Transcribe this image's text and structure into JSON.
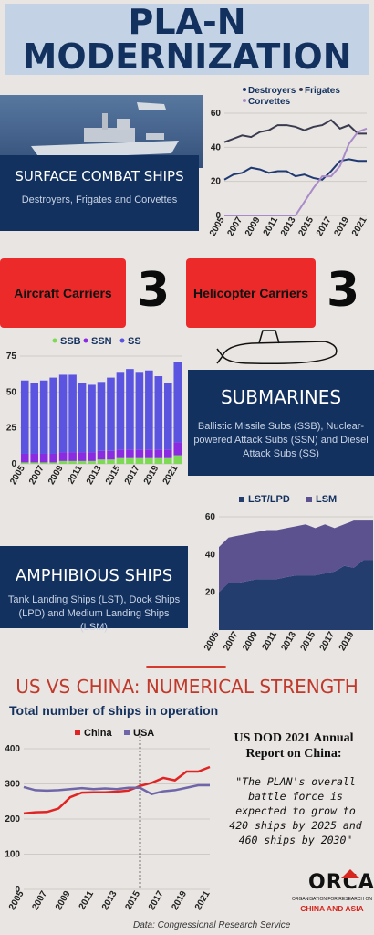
{
  "header": {
    "line1": "PLA-N",
    "line2": "MODERNIZATION"
  },
  "surface": {
    "title": "SURFACE COMBAT SHIPS",
    "subtitle": "Destroyers, Frigates and Corvettes"
  },
  "carriers": {
    "aircraft_label": "Aircraft Carriers",
    "aircraft_count": "3",
    "helicopter_label": "Helicopter Carriers",
    "helicopter_count": "3"
  },
  "submarines": {
    "title": "SUBMARINES",
    "subtitle": "Ballistic Missile Subs (SSB), Nuclear-powered Attack Subs (SSN) and Diesel Attack Subs (SS)"
  },
  "amphibious": {
    "title": "AMPHIBIOUS SHIPS",
    "subtitle": "Tank Landing Ships (LST), Dock Ships (LPD) and Medium Landing Ships (LSM)"
  },
  "comparison": {
    "title": "US VS CHINA: NUMERICAL STRENGTH",
    "subtitle": "Total number of ships in operation",
    "report_title": "US DOD 2021 Annual Report on China:",
    "quote": "\"The PLAN's overall battle force is expected to grow to 420 ships by 2025 and 460 ships by 2030\"",
    "source": "Data: Congressional Research Service",
    "logo_word": "ORCA",
    "logo_line1": "ORGANISATION FOR RESEARCH ON",
    "logo_line2": "CHINA AND ASIA"
  },
  "colors": {
    "navy": "#13315f",
    "red": "#ec2a2a",
    "title_bg": "#c3d2e4",
    "destroyers": "#1f3a73",
    "frigates": "#3b3b4f",
    "corvettes": "#a98bc9",
    "ssb": "#7ed957",
    "ssn": "#8a2be2",
    "ss": "#5a54e0",
    "lst": "#233d6e",
    "lsm": "#5c5290",
    "china": "#e02424",
    "usa": "#6e66a8"
  },
  "chart_data": [
    {
      "id": "surface",
      "type": "line",
      "x": [
        2005,
        2006,
        2007,
        2008,
        2009,
        2010,
        2011,
        2012,
        2013,
        2014,
        2015,
        2016,
        2017,
        2018,
        2019,
        2020,
        2021
      ],
      "xticks": [
        2005,
        2007,
        2009,
        2011,
        2013,
        2015,
        2017,
        2019,
        2021
      ],
      "ylim": [
        0,
        60
      ],
      "yticks": [
        0,
        20,
        40,
        60
      ],
      "series": [
        {
          "name": "Destroyers",
          "values": [
            21,
            24,
            25,
            28,
            27,
            25,
            26,
            26,
            23,
            24,
            22,
            21,
            26,
            32,
            33,
            32,
            32
          ]
        },
        {
          "name": "Frigates",
          "values": [
            43,
            45,
            47,
            46,
            49,
            50,
            53,
            53,
            52,
            50,
            52,
            53,
            56,
            51,
            53,
            48,
            48
          ]
        },
        {
          "name": "Corvettes",
          "values": [
            0,
            0,
            0,
            0,
            0,
            0,
            0,
            0,
            0,
            8,
            16,
            23,
            23,
            29,
            42,
            49,
            51
          ]
        }
      ]
    },
    {
      "id": "submarines",
      "type": "bar",
      "stacked": true,
      "categories": [
        2005,
        2006,
        2007,
        2008,
        2009,
        2010,
        2011,
        2012,
        2013,
        2014,
        2015,
        2016,
        2017,
        2018,
        2019,
        2020,
        2021
      ],
      "xticks": [
        2005,
        2007,
        2009,
        2011,
        2013,
        2015,
        2017,
        2019,
        2021
      ],
      "ylim": [
        0,
        75
      ],
      "yticks": [
        0,
        25,
        50,
        75
      ],
      "series": [
        {
          "name": "SSB",
          "values": [
            1,
            1,
            1,
            1,
            2,
            2,
            2,
            2,
            3,
            3,
            4,
            4,
            4,
            4,
            4,
            4,
            6
          ]
        },
        {
          "name": "SSN",
          "values": [
            6,
            6,
            6,
            6,
            6,
            6,
            6,
            6,
            6,
            6,
            6,
            6,
            6,
            6,
            6,
            6,
            9
          ]
        },
        {
          "name": "SS",
          "values": [
            51,
            49,
            51,
            53,
            54,
            54,
            48,
            47,
            48,
            51,
            54,
            56,
            54,
            55,
            51,
            46,
            56
          ]
        }
      ]
    },
    {
      "id": "amphibious",
      "type": "area",
      "stacked": true,
      "x": [
        2005,
        2006,
        2007,
        2008,
        2009,
        2010,
        2011,
        2012,
        2013,
        2014,
        2015,
        2016,
        2017,
        2018,
        2019,
        2020,
        2021
      ],
      "xticks": [
        2005,
        2007,
        2009,
        2011,
        2013,
        2015,
        2017,
        2019
      ],
      "ylim": [
        0,
        60
      ],
      "yticks": [
        20,
        40,
        60
      ],
      "series": [
        {
          "name": "LST/LPD",
          "values": [
            20,
            25,
            25,
            26,
            27,
            27,
            27,
            28,
            29,
            29,
            29,
            30,
            31,
            34,
            33,
            37,
            37
          ]
        },
        {
          "name": "LSM",
          "values": [
            24,
            24,
            25,
            25,
            25,
            26,
            26,
            26,
            26,
            27,
            25,
            26,
            23,
            22,
            25,
            21,
            21
          ]
        }
      ]
    },
    {
      "id": "us-vs-china",
      "type": "line",
      "x": [
        2005,
        2006,
        2007,
        2008,
        2009,
        2010,
        2011,
        2012,
        2013,
        2014,
        2015,
        2016,
        2017,
        2018,
        2019,
        2020,
        2021
      ],
      "xticks": [
        2005,
        2007,
        2009,
        2011,
        2013,
        2015,
        2017,
        2019,
        2021
      ],
      "ylim": [
        0,
        400
      ],
      "yticks": [
        0,
        100,
        200,
        300,
        400
      ],
      "series": [
        {
          "name": "China",
          "values": [
            216,
            219,
            220,
            230,
            262,
            275,
            276,
            276,
            278,
            281,
            294,
            303,
            317,
            310,
            335,
            335,
            348
          ]
        },
        {
          "name": "USA",
          "values": [
            291,
            282,
            281,
            282,
            285,
            288,
            285,
            287,
            285,
            289,
            289,
            271,
            279,
            282,
            289,
            296,
            296
          ]
        }
      ]
    }
  ]
}
